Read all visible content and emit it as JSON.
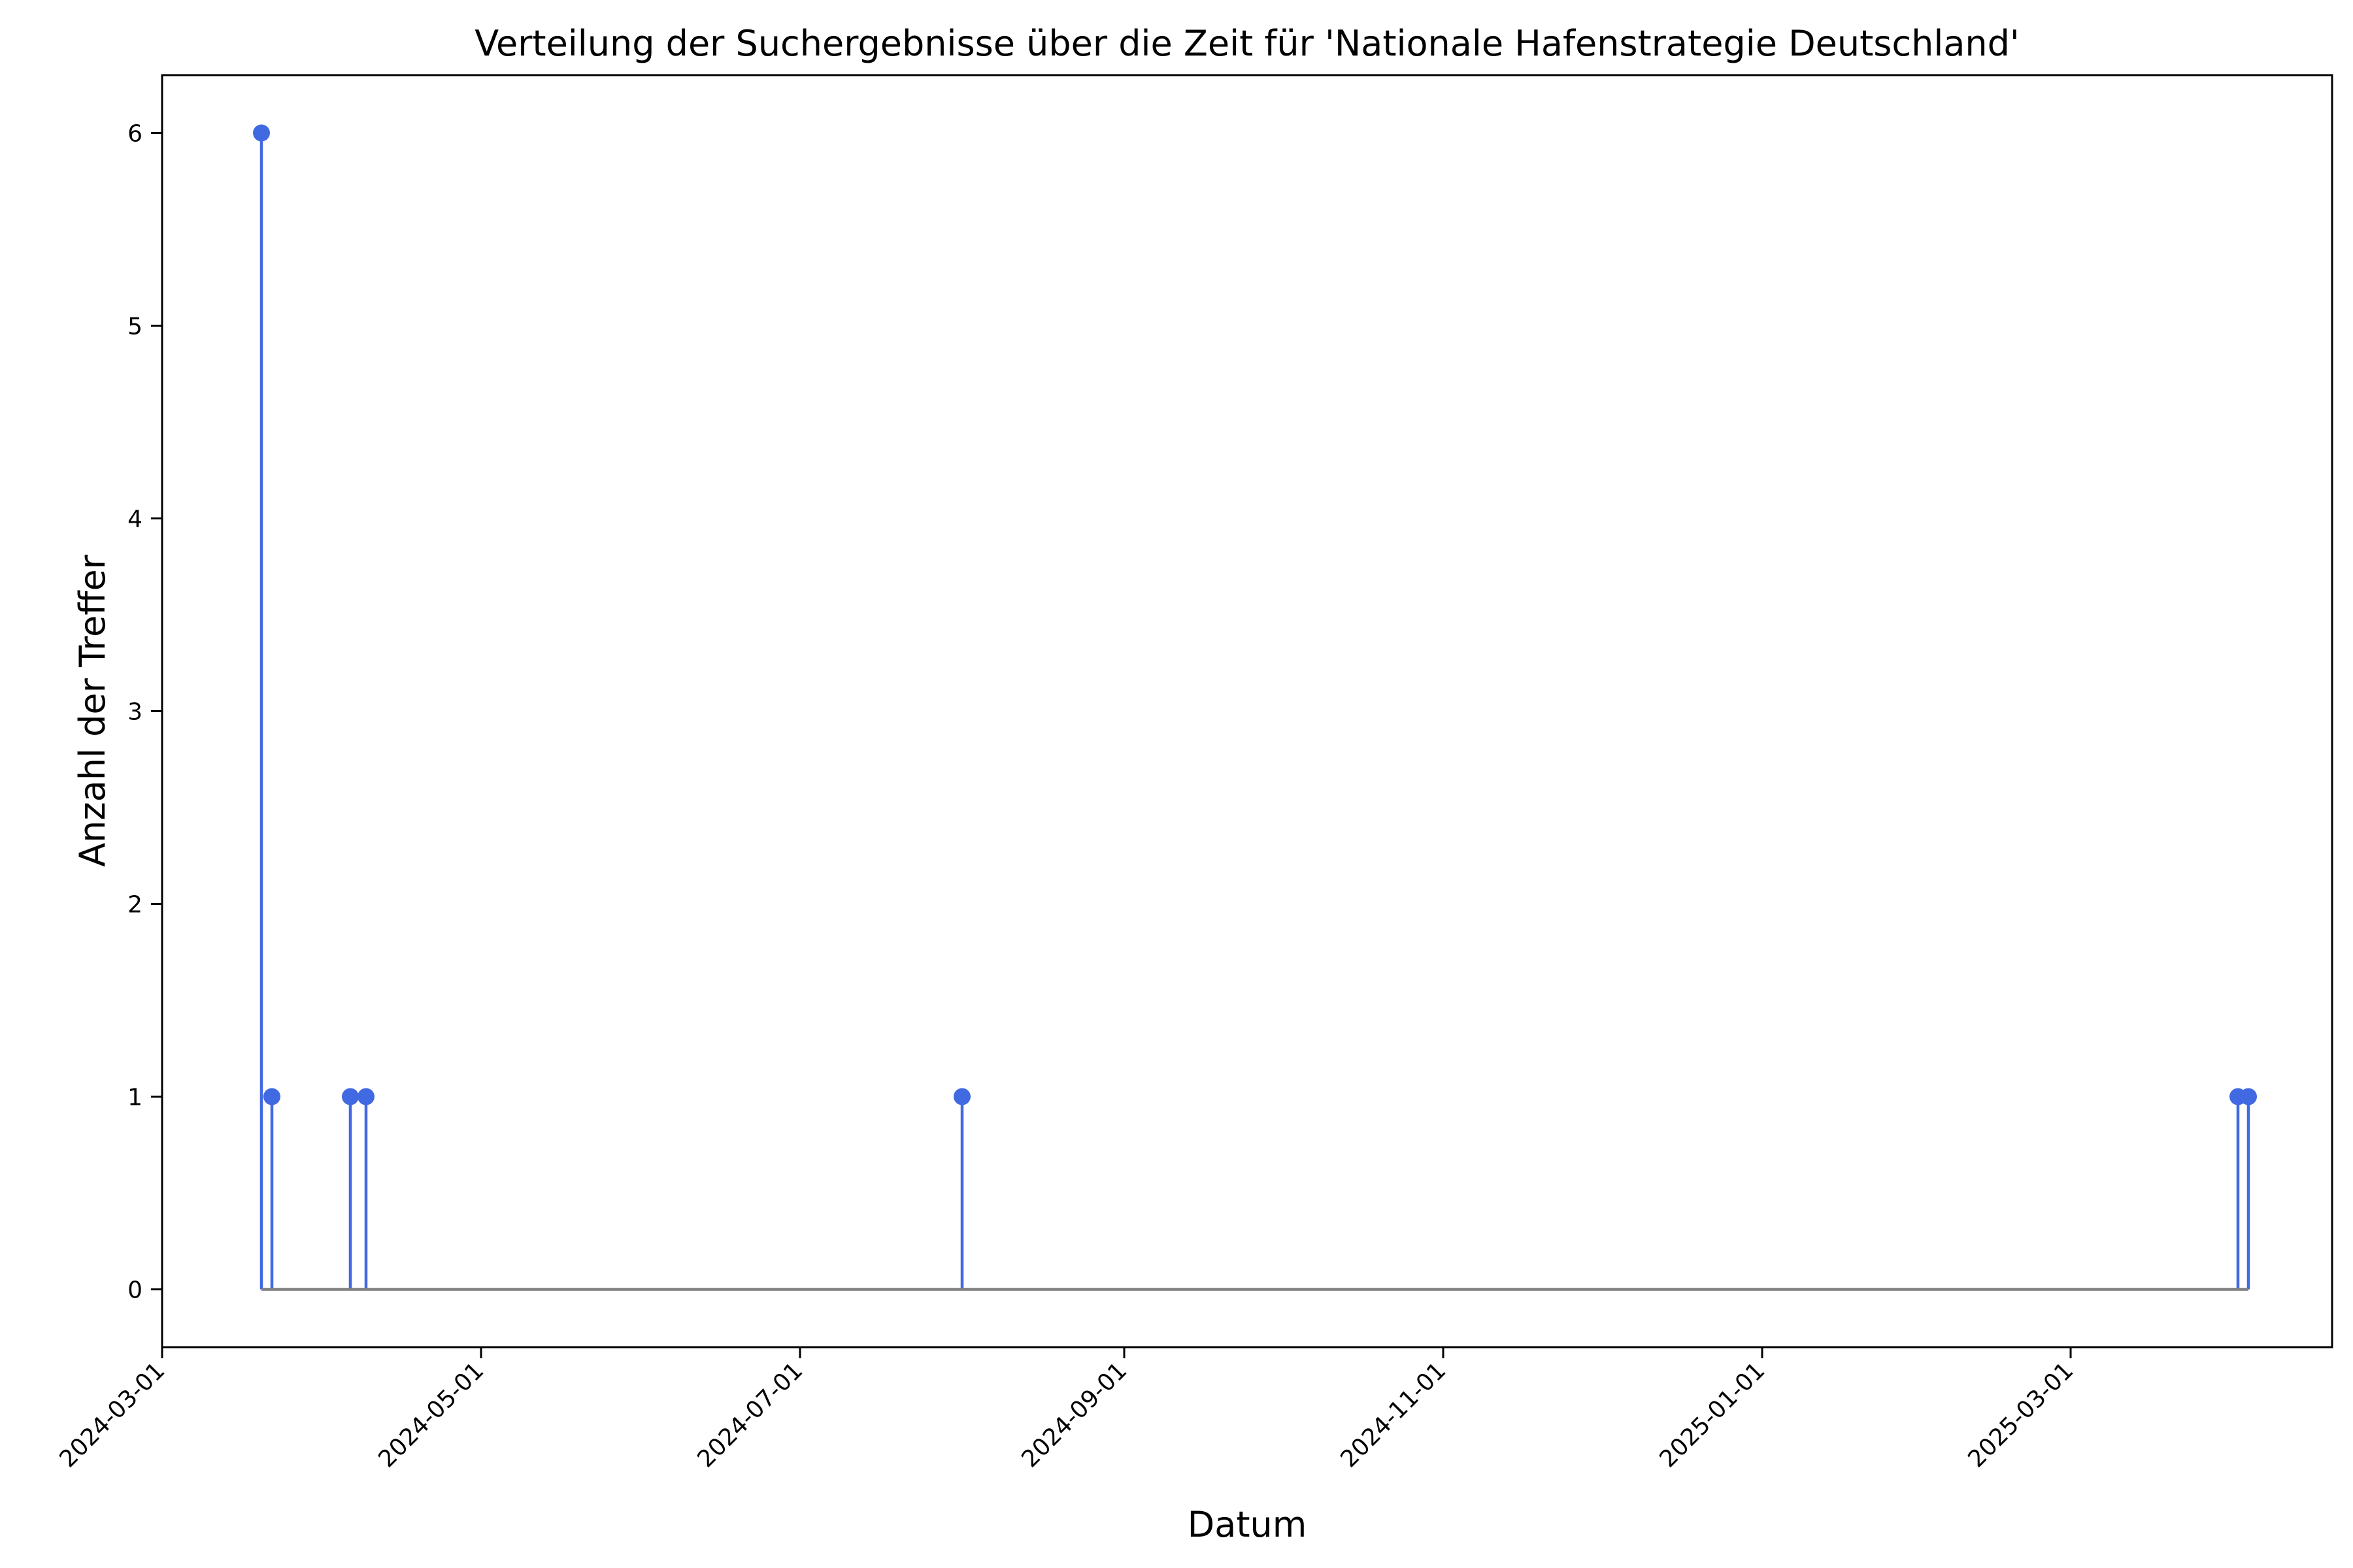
{
  "chart_data": {
    "type": "stem",
    "title": "Verteilung der Suchergebnisse über die Zeit für 'Nationale Hafenstrategie Deutschland'",
    "xlabel": "Datum",
    "ylabel": "Anzahl der Treffer",
    "x_type": "date",
    "xlim": [
      "2024-03-01",
      "2025-04-20"
    ],
    "ylim": [
      -0.3,
      6.3
    ],
    "xticks": [
      "2024-03-01",
      "2024-05-01",
      "2024-07-01",
      "2024-09-01",
      "2024-11-01",
      "2025-01-01",
      "2025-03-01"
    ],
    "yticks": [
      0,
      1,
      2,
      3,
      4,
      5,
      6
    ],
    "series": [
      {
        "x": [
          "2024-03-20",
          "2024-03-22",
          "2024-04-06",
          "2024-04-09",
          "2024-08-01",
          "2025-04-02",
          "2025-04-04"
        ],
        "y": [
          6,
          1,
          1,
          1,
          1,
          1,
          1
        ]
      }
    ],
    "baseline": 0,
    "colors": {
      "stem": "#4169e1",
      "marker": "#4169e1",
      "baseline": "#808080"
    },
    "grid": false
  }
}
